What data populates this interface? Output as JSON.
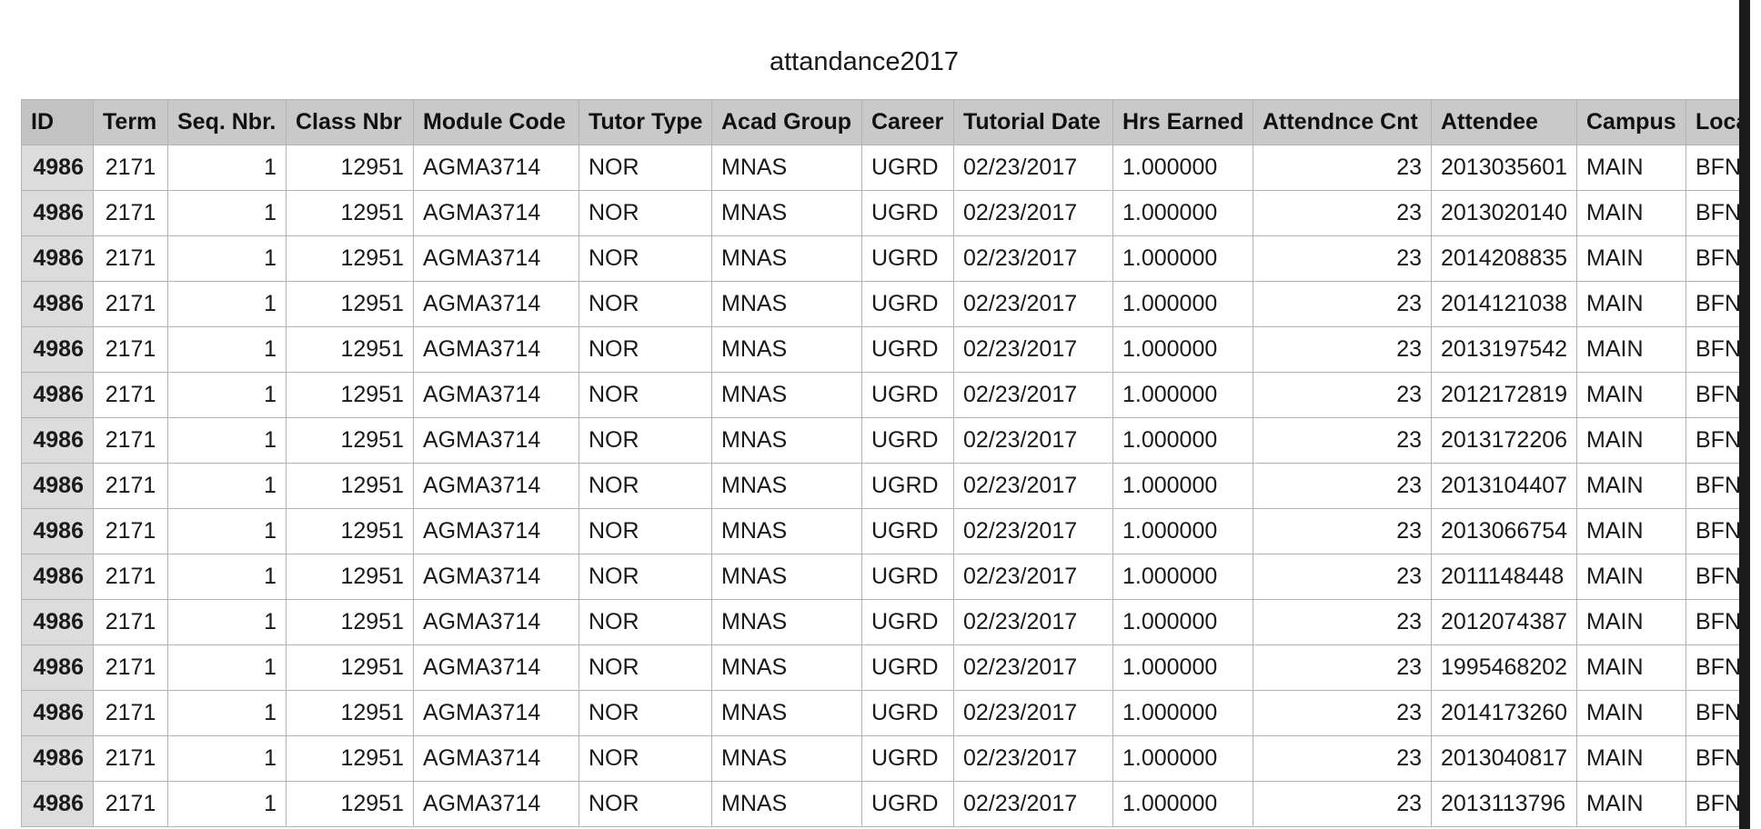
{
  "sheet": {
    "title": "attandance2017"
  },
  "table": {
    "columns": [
      "ID",
      "Term",
      "Seq. Nbr.",
      "Class Nbr",
      "Module Code",
      "Tutor Type",
      "Acad Group",
      "Career",
      "Tutorial Date",
      "Hrs Earned",
      "Attendnce Cnt",
      "Attendee",
      "Campus",
      "Location"
    ],
    "rows": [
      [
        "4986",
        "2171",
        "1",
        "12951",
        "AGMA3714",
        "NOR",
        "MNAS",
        "UGRD",
        "02/23/2017",
        "1.000000",
        "23",
        "2013035601",
        "MAIN",
        "BFN"
      ],
      [
        "4986",
        "2171",
        "1",
        "12951",
        "AGMA3714",
        "NOR",
        "MNAS",
        "UGRD",
        "02/23/2017",
        "1.000000",
        "23",
        "2013020140",
        "MAIN",
        "BFN"
      ],
      [
        "4986",
        "2171",
        "1",
        "12951",
        "AGMA3714",
        "NOR",
        "MNAS",
        "UGRD",
        "02/23/2017",
        "1.000000",
        "23",
        "2014208835",
        "MAIN",
        "BFN"
      ],
      [
        "4986",
        "2171",
        "1",
        "12951",
        "AGMA3714",
        "NOR",
        "MNAS",
        "UGRD",
        "02/23/2017",
        "1.000000",
        "23",
        "2014121038",
        "MAIN",
        "BFN"
      ],
      [
        "4986",
        "2171",
        "1",
        "12951",
        "AGMA3714",
        "NOR",
        "MNAS",
        "UGRD",
        "02/23/2017",
        "1.000000",
        "23",
        "2013197542",
        "MAIN",
        "BFN"
      ],
      [
        "4986",
        "2171",
        "1",
        "12951",
        "AGMA3714",
        "NOR",
        "MNAS",
        "UGRD",
        "02/23/2017",
        "1.000000",
        "23",
        "2012172819",
        "MAIN",
        "BFN"
      ],
      [
        "4986",
        "2171",
        "1",
        "12951",
        "AGMA3714",
        "NOR",
        "MNAS",
        "UGRD",
        "02/23/2017",
        "1.000000",
        "23",
        "2013172206",
        "MAIN",
        "BFN"
      ],
      [
        "4986",
        "2171",
        "1",
        "12951",
        "AGMA3714",
        "NOR",
        "MNAS",
        "UGRD",
        "02/23/2017",
        "1.000000",
        "23",
        "2013104407",
        "MAIN",
        "BFN"
      ],
      [
        "4986",
        "2171",
        "1",
        "12951",
        "AGMA3714",
        "NOR",
        "MNAS",
        "UGRD",
        "02/23/2017",
        "1.000000",
        "23",
        "2013066754",
        "MAIN",
        "BFN"
      ],
      [
        "4986",
        "2171",
        "1",
        "12951",
        "AGMA3714",
        "NOR",
        "MNAS",
        "UGRD",
        "02/23/2017",
        "1.000000",
        "23",
        "2011148448",
        "MAIN",
        "BFN"
      ],
      [
        "4986",
        "2171",
        "1",
        "12951",
        "AGMA3714",
        "NOR",
        "MNAS",
        "UGRD",
        "02/23/2017",
        "1.000000",
        "23",
        "2012074387",
        "MAIN",
        "BFN"
      ],
      [
        "4986",
        "2171",
        "1",
        "12951",
        "AGMA3714",
        "NOR",
        "MNAS",
        "UGRD",
        "02/23/2017",
        "1.000000",
        "23",
        "1995468202",
        "MAIN",
        "BFN"
      ],
      [
        "4986",
        "2171",
        "1",
        "12951",
        "AGMA3714",
        "NOR",
        "MNAS",
        "UGRD",
        "02/23/2017",
        "1.000000",
        "23",
        "2014173260",
        "MAIN",
        "BFN"
      ],
      [
        "4986",
        "2171",
        "1",
        "12951",
        "AGMA3714",
        "NOR",
        "MNAS",
        "UGRD",
        "02/23/2017",
        "1.000000",
        "23",
        "2013040817",
        "MAIN",
        "BFN"
      ],
      [
        "4986",
        "2171",
        "1",
        "12951",
        "AGMA3714",
        "NOR",
        "MNAS",
        "UGRD",
        "02/23/2017",
        "1.000000",
        "23",
        "2013113796",
        "MAIN",
        "BFN"
      ]
    ]
  },
  "colors": {
    "header_bg": "#c9c9c9",
    "id_cell_bg": "#dcdcdc",
    "grid_line": "#b3b3b3"
  }
}
